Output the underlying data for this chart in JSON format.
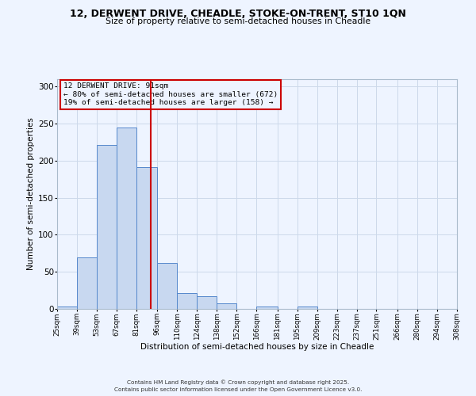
{
  "title1": "12, DERWENT DRIVE, CHEADLE, STOKE-ON-TRENT, ST10 1QN",
  "title2": "Size of property relative to semi-detached houses in Cheadle",
  "xlabel": "Distribution of semi-detached houses by size in Cheadle",
  "ylabel": "Number of semi-detached properties",
  "bin_labels": [
    "25sqm",
    "39sqm",
    "53sqm",
    "67sqm",
    "81sqm",
    "96sqm",
    "110sqm",
    "124sqm",
    "138sqm",
    "152sqm",
    "166sqm",
    "181sqm",
    "195sqm",
    "209sqm",
    "223sqm",
    "237sqm",
    "251sqm",
    "266sqm",
    "280sqm",
    "294sqm",
    "308sqm"
  ],
  "bin_edges": [
    25,
    39,
    53,
    67,
    81,
    96,
    110,
    124,
    138,
    152,
    166,
    181,
    195,
    209,
    223,
    237,
    251,
    266,
    280,
    294,
    308
  ],
  "bar_heights": [
    3,
    69,
    221,
    245,
    191,
    62,
    21,
    17,
    8,
    0,
    3,
    0,
    3,
    0,
    0,
    0,
    0,
    0,
    0,
    0
  ],
  "bar_color": "#c8d8f0",
  "bar_edge_color": "#5588cc",
  "property_size": 91,
  "vline_color": "#cc0000",
  "annotation_line1": "12 DERWENT DRIVE: 91sqm",
  "annotation_line2": "← 80% of semi-detached houses are smaller (672)",
  "annotation_line3": "19% of semi-detached houses are larger (158) →",
  "annotation_box_color": "#cc0000",
  "ylim": [
    0,
    310
  ],
  "yticks": [
    0,
    50,
    100,
    150,
    200,
    250,
    300
  ],
  "grid_color": "#ccd9ea",
  "bg_color": "#eef4ff",
  "footer1": "Contains HM Land Registry data © Crown copyright and database right 2025.",
  "footer2": "Contains public sector information licensed under the Open Government Licence v3.0."
}
